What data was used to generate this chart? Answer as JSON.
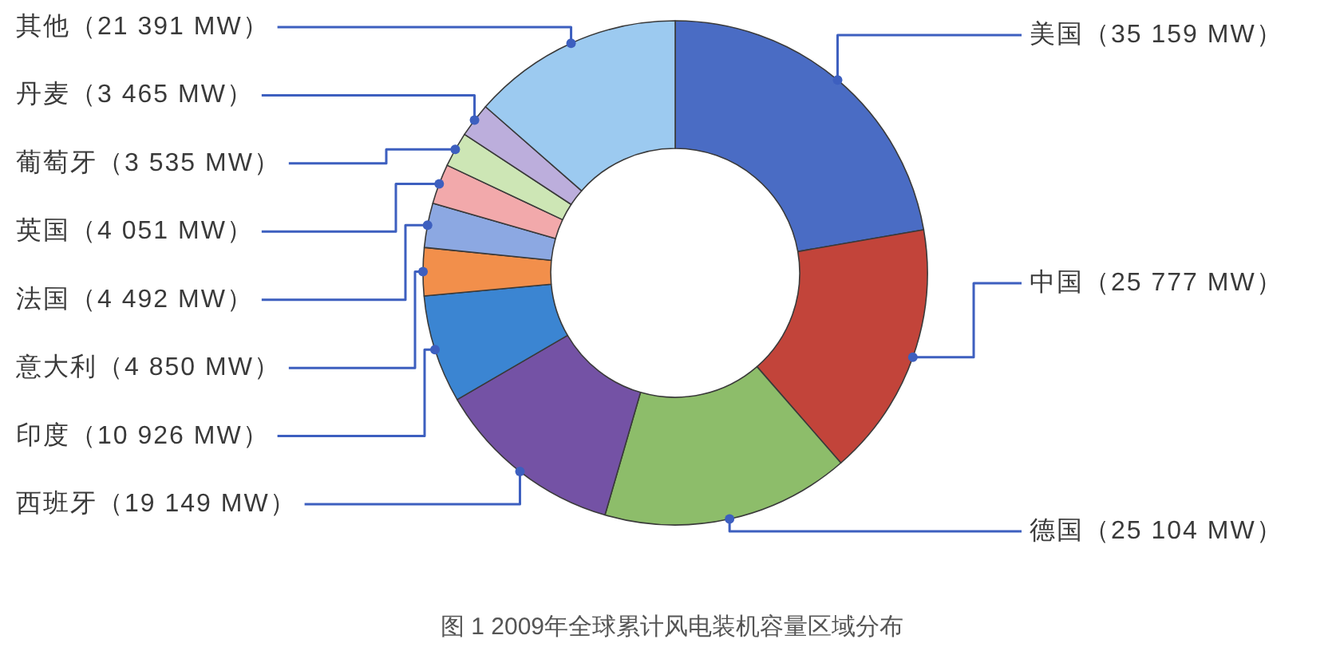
{
  "chart_data": {
    "type": "donut",
    "title": "图 1 2009年全球累计风电装机容量区域分布",
    "categories": [
      "美国（35 159 MW）",
      "中国（25 777 MW）",
      "德国（25 104 MW）",
      "西班牙（19 149 MW）",
      "印度（10 926 MW）",
      "意大利（4 850 MW）",
      "法国（4 492 MW）",
      "英国（4 051 MW）",
      "葡萄牙（3 535 MW）",
      "丹麦（3 465 MW）",
      "其他（21 391 MW）"
    ],
    "values": [
      35159,
      25777,
      25104,
      19149,
      10926,
      4850,
      4492,
      4051,
      3535,
      3465,
      21391
    ],
    "colors": [
      "#4a6cc4",
      "#c2443a",
      "#8dbd6a",
      "#7452a5",
      "#3b85d2",
      "#f28f4b",
      "#8ca8e2",
      "#f2a9ab",
      "#cde6b5",
      "#bcaedc",
      "#9ccaf0"
    ]
  }
}
